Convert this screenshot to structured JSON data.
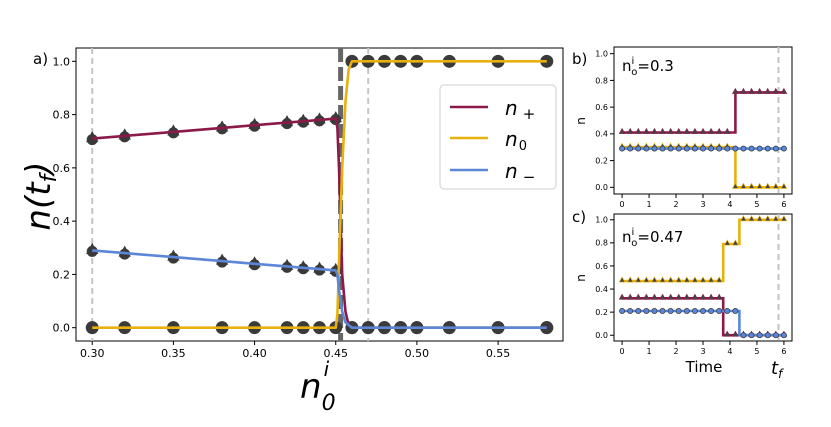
{
  "chart_data": [
    {
      "panel": "a)",
      "type": "line",
      "xlabel": "n_0^i",
      "ylabel": "n(t_f)",
      "xlim": [
        0.29,
        0.59
      ],
      "ylim": [
        -0.05,
        1.05
      ],
      "xticks": [
        0.3,
        0.35,
        0.4,
        0.45,
        0.5,
        0.55
      ],
      "xtick_labels": [
        "0.30",
        "0.35",
        "0.40",
        "0.45",
        "0.50",
        "0.55"
      ],
      "yticks": [
        0.0,
        0.2,
        0.4,
        0.6,
        0.8,
        1.0
      ],
      "ytick_labels": [
        "0.0",
        "0.2",
        "0.4",
        "0.6",
        "0.8",
        "1.0"
      ],
      "grid": false,
      "legend_position": "upper right",
      "vlines": [
        {
          "x": 0.3,
          "style": "dashed-light"
        },
        {
          "x": 0.47,
          "style": "dashed-light"
        },
        {
          "x": 0.453,
          "style": "dashed-dark"
        }
      ],
      "series": [
        {
          "name": "n_+",
          "color": "#8b1a4a",
          "x": [
            0.3,
            0.32,
            0.35,
            0.38,
            0.4,
            0.42,
            0.43,
            0.44,
            0.45,
            0.451,
            0.452,
            0.453,
            0.454,
            0.456,
            0.458,
            0.46,
            0.58
          ],
          "y": [
            0.71,
            0.72,
            0.735,
            0.75,
            0.76,
            0.77,
            0.775,
            0.78,
            0.785,
            0.75,
            0.6,
            0.4,
            0.2,
            0.06,
            0.01,
            0.0,
            0.0
          ]
        },
        {
          "name": "n_0",
          "color": "#e8b10e",
          "x": [
            0.3,
            0.45,
            0.451,
            0.452,
            0.454,
            0.456,
            0.458,
            0.46,
            0.58
          ],
          "y": [
            0.0,
            0.0,
            0.05,
            0.25,
            0.6,
            0.85,
            0.97,
            1.0,
            1.0
          ]
        },
        {
          "name": "n_-",
          "color": "#5b87d6",
          "x": [
            0.3,
            0.32,
            0.35,
            0.38,
            0.4,
            0.42,
            0.43,
            0.44,
            0.45,
            0.451,
            0.452,
            0.454,
            0.456,
            0.46,
            0.58
          ],
          "y": [
            0.29,
            0.28,
            0.265,
            0.25,
            0.24,
            0.23,
            0.225,
            0.22,
            0.215,
            0.2,
            0.14,
            0.06,
            0.02,
            0.0,
            0.0
          ]
        }
      ],
      "markers": {
        "color": "#3a3a3a",
        "x": [
          0.3,
          0.32,
          0.35,
          0.38,
          0.4,
          0.42,
          0.43,
          0.44,
          0.45,
          0.46,
          0.47,
          0.48,
          0.49,
          0.5,
          0.52,
          0.55,
          0.58
        ],
        "n_plus_y": [
          0.71,
          0.72,
          0.735,
          0.75,
          0.76,
          0.77,
          0.775,
          0.78,
          0.785,
          0.0,
          0.0,
          0.0,
          0.0,
          0.0,
          0.0,
          0.0,
          0.0
        ],
        "n_minus_y": [
          0.29,
          0.28,
          0.265,
          0.25,
          0.24,
          0.23,
          0.225,
          0.22,
          0.215,
          0.0,
          0.0,
          0.0,
          0.0,
          0.0,
          0.0,
          0.0,
          0.0
        ],
        "n_zero_y": [
          0.0,
          0.0,
          0.0,
          0.0,
          0.0,
          0.0,
          0.0,
          0.0,
          0.0,
          1.0,
          1.0,
          1.0,
          1.0,
          1.0,
          1.0,
          1.0,
          1.0
        ]
      }
    },
    {
      "panel": "b)",
      "type": "line",
      "annotation": "nio=0.3",
      "ylabel": "n",
      "xlim": [
        -0.3,
        6.3
      ],
      "ylim": [
        -0.05,
        1.05
      ],
      "xticks": [
        0,
        1,
        2,
        3,
        4,
        5,
        6
      ],
      "yticks": [
        0.0,
        0.2,
        0.4,
        0.6,
        0.8,
        1.0
      ],
      "ytick_labels": [
        "0.0",
        "0.2",
        "0.4",
        "0.6",
        "0.8",
        "1.0"
      ],
      "vline_x": 5.8,
      "marker_x": [
        0,
        0.3,
        0.6,
        0.9,
        1.2,
        1.5,
        1.8,
        2.1,
        2.4,
        2.7,
        3.0,
        3.3,
        3.6,
        3.9,
        4.2,
        4.5,
        4.8,
        5.1,
        5.4,
        5.7,
        6.0
      ],
      "series": [
        {
          "name": "n_+",
          "color": "#8b1a4a",
          "x": [
            0,
            4.2,
            4.2,
            6
          ],
          "y": [
            0.41,
            0.41,
            0.71,
            0.71
          ],
          "marker": "triangle"
        },
        {
          "name": "n_0",
          "color": "#e8b10e",
          "x": [
            0,
            4.2,
            4.2,
            6
          ],
          "y": [
            0.3,
            0.3,
            0.0,
            0.0
          ],
          "marker": "triangle"
        },
        {
          "name": "n_-",
          "color": "#5b87d6",
          "x": [
            0,
            6
          ],
          "y": [
            0.29,
            0.29
          ],
          "marker": "circle"
        }
      ]
    },
    {
      "panel": "c)",
      "type": "line",
      "annotation": "nio=0.47",
      "xlabel": "Time",
      "ylabel": "n",
      "xlim": [
        -0.3,
        6.3
      ],
      "ylim": [
        -0.05,
        1.05
      ],
      "xticks": [
        0,
        1,
        2,
        3,
        4,
        5,
        6
      ],
      "yticks": [
        0.0,
        0.2,
        0.4,
        0.6,
        0.8,
        1.0
      ],
      "ytick_labels": [
        "0.0",
        "0.2",
        "0.4",
        "0.6",
        "0.8",
        "1.0"
      ],
      "vline_x": 5.8,
      "vline_label": "t_f",
      "marker_x": [
        0,
        0.3,
        0.6,
        0.9,
        1.2,
        1.5,
        1.8,
        2.1,
        2.4,
        2.7,
        3.0,
        3.3,
        3.6,
        3.9,
        4.2,
        4.5,
        4.8,
        5.1,
        5.4,
        5.7,
        6.0
      ],
      "series": [
        {
          "name": "n_0",
          "color": "#e8b10e",
          "x": [
            0,
            3.75,
            3.75,
            4.35,
            4.35,
            6
          ],
          "y": [
            0.47,
            0.47,
            0.79,
            0.79,
            1.0,
            1.0
          ],
          "marker": "triangle"
        },
        {
          "name": "n_+",
          "color": "#8b1a4a",
          "x": [
            0,
            3.75,
            3.75,
            6
          ],
          "y": [
            0.32,
            0.32,
            0.0,
            0.0
          ],
          "marker": "triangle"
        },
        {
          "name": "n_-",
          "color": "#5b87d6",
          "x": [
            0,
            4.35,
            4.35,
            6
          ],
          "y": [
            0.21,
            0.21,
            0.0,
            0.0
          ],
          "marker": "circle"
        }
      ]
    }
  ]
}
